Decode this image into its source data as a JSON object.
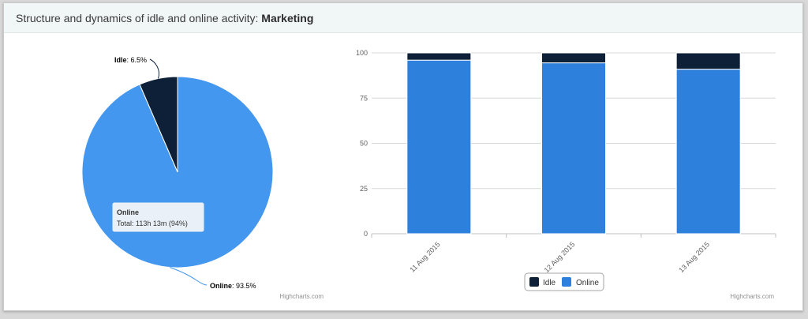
{
  "header": {
    "title_prefix": "Structure and dynamics of idle and online activity: ",
    "title_entity": "Marketing"
  },
  "colors": {
    "idle": "#0e2038",
    "online_pie": "#4497ee",
    "online_bar": "#2e80dd",
    "grid": "#d8d8d8",
    "axis_text": "#606060"
  },
  "credits": "Highcharts.com",
  "chart_data": [
    {
      "type": "pie",
      "slices": [
        {
          "name": "Idle",
          "value": 6.5,
          "label": "Idle",
          "pct_text": "6.5%"
        },
        {
          "name": "Online",
          "value": 93.5,
          "label": "Online",
          "pct_text": "93.5%"
        }
      ],
      "tooltip": {
        "title": "Online",
        "text": "Total: 113h 13m (94%)"
      }
    },
    {
      "type": "bar",
      "stacked": true,
      "categories": [
        "11 Aug 2015",
        "12 Aug 2015",
        "13 Aug 2015"
      ],
      "series": [
        {
          "name": "Idle",
          "values": [
            4,
            5.5,
            9
          ]
        },
        {
          "name": "Online",
          "values": [
            96,
            94.5,
            91
          ]
        }
      ],
      "ylim": [
        0,
        100
      ],
      "yticks": [
        "0",
        "25",
        "50",
        "75",
        "100"
      ],
      "legend": "bottom-center"
    }
  ]
}
